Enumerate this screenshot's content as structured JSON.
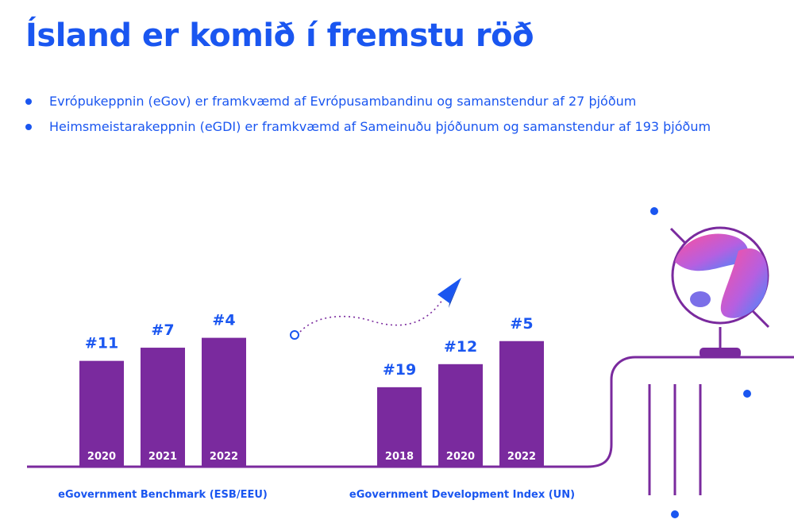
{
  "title": "Ísland er komið í fremstu röð",
  "bullets": [
    "Evrópukeppnin (eGov) er framkvæmd af Evrópusambandinu og samanstendur af 27 þjóðum",
    "Heimsmeistarakeppnin (eGDI) er framkvæmd af Sameinuðu þjóðunum og samanstendur af 193 þjóðum"
  ],
  "chart_data": [
    {
      "type": "bar",
      "title": "eGovernment Benchmark (ESB/EEU)",
      "categories": [
        "2020",
        "2021",
        "2022"
      ],
      "labels": [
        "#11",
        "#7",
        "#4"
      ],
      "values": [
        11,
        7,
        4
      ]
    },
    {
      "type": "bar",
      "title": "eGovernment Development Index (UN)",
      "categories": [
        "2018",
        "2020",
        "2022"
      ],
      "labels": [
        "#19",
        "#12",
        "#5"
      ],
      "values": [
        19,
        12,
        5
      ]
    }
  ],
  "colors": {
    "accent": "#1a56f0",
    "bar": "#7a2a9e",
    "line": "#7a2a9e"
  }
}
